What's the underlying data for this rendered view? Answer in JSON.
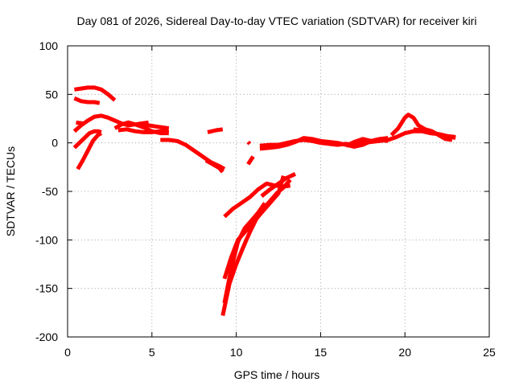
{
  "chart_data": {
    "type": "scatter",
    "title": "Day 081 of 2026, Sidereal Day-to-day VTEC variation (SDTVAR) for receiver kiri",
    "xlabel": "GPS time / hours",
    "ylabel": "SDTVAR / TECUs",
    "xlim": [
      0,
      25
    ],
    "ylim": [
      -200,
      100
    ],
    "xticks": [
      0,
      5,
      10,
      15,
      20,
      25
    ],
    "yticks": [
      100,
      50,
      0,
      -50,
      -100,
      -150,
      -200
    ],
    "grid": true,
    "color": "#ff0000",
    "series": [
      {
        "x": [
          0.4,
          0.8,
          1.2,
          1.6,
          2.0,
          2.4,
          2.8
        ],
        "y": [
          55,
          56,
          57,
          57,
          55,
          50,
          44
        ]
      },
      {
        "x": [
          0.4,
          0.8,
          1.2,
          1.6,
          1.9
        ],
        "y": [
          46,
          43,
          42,
          42,
          41
        ]
      },
      {
        "x": [
          0.4,
          0.8,
          1.2,
          1.6,
          2.0,
          2.4,
          2.8,
          3.2,
          3.6,
          4.0,
          4.4,
          4.8,
          5.2,
          5.6,
          6.0
        ],
        "y": [
          12,
          18,
          23,
          27,
          28,
          26,
          23,
          20,
          18,
          19,
          20,
          18,
          17,
          16,
          15
        ]
      },
      {
        "x": [
          0.4,
          0.7,
          1.0,
          1.3,
          1.6,
          1.8,
          2.0
        ],
        "y": [
          -5,
          0,
          5,
          10,
          12,
          12,
          11
        ]
      },
      {
        "x": [
          0.6,
          0.9,
          1.2,
          1.5,
          1.8,
          2.0
        ],
        "y": [
          -27,
          -18,
          -8,
          2,
          8,
          10
        ]
      },
      {
        "x": [
          0.5,
          0.9
        ],
        "y": [
          21,
          20
        ]
      },
      {
        "x": [
          2.8,
          3.2,
          3.6,
          4.0,
          4.5,
          5.0,
          5.5,
          6.0
        ],
        "y": [
          15,
          19,
          21,
          19,
          16,
          12,
          10,
          10
        ]
      },
      {
        "x": [
          3.0,
          3.5,
          4.0,
          4.5,
          5.0,
          5.5,
          6.0
        ],
        "y": [
          13,
          14,
          12,
          11,
          11,
          12,
          13
        ]
      },
      {
        "x": [
          4.4,
          4.8
        ],
        "y": [
          20,
          21
        ]
      },
      {
        "x": [
          5.5,
          6.0,
          6.5,
          7.0,
          7.5,
          8.0,
          8.5,
          9.0,
          9.3
        ],
        "y": [
          3,
          3,
          2,
          -2,
          -8,
          -14,
          -20,
          -24,
          -27
        ]
      },
      {
        "x": [
          8.2,
          8.6,
          9.0,
          9.2
        ],
        "y": [
          -18,
          -22,
          -26,
          -30
        ]
      },
      {
        "x": [
          8.3,
          8.8,
          9.2
        ],
        "y": [
          11,
          13,
          14
        ]
      },
      {
        "x": [
          9.3,
          9.8,
          10.3,
          10.8,
          11.3,
          11.8,
          12.3,
          12.8,
          13.2
        ],
        "y": [
          -76,
          -68,
          -62,
          -56,
          -48,
          -42,
          -44,
          -45,
          -44
        ]
      },
      {
        "x": [
          9.2,
          9.6,
          10.0,
          10.4,
          10.8,
          11.2,
          11.6,
          12.0,
          12.4,
          12.8,
          13.2
        ],
        "y": [
          -178,
          -145,
          -125,
          -108,
          -92,
          -78,
          -68,
          -60,
          -52,
          -46,
          -38
        ]
      },
      {
        "x": [
          9.3,
          9.7,
          10.1,
          10.5,
          10.9,
          11.3,
          11.7
        ],
        "y": [
          -165,
          -130,
          -102,
          -88,
          -80,
          -72,
          -62
        ]
      },
      {
        "x": [
          9.3,
          9.7,
          10.1,
          10.5,
          11.0,
          11.5,
          12.0,
          12.5,
          12.8
        ],
        "y": [
          -140,
          -118,
          -100,
          -92,
          -82,
          -72,
          -62,
          -52,
          -34
        ]
      },
      {
        "x": [
          11.5,
          12.0,
          12.5,
          13.0,
          13.5
        ],
        "y": [
          -55,
          -48,
          -42,
          -36,
          -32
        ]
      },
      {
        "x": [
          10.7,
          11.0
        ],
        "y": [
          -22,
          -14
        ]
      },
      {
        "x": [
          10.7,
          10.8
        ],
        "y": [
          1,
          -1
        ]
      },
      {
        "x": [
          11.4,
          12.0,
          12.5,
          13.0,
          13.5,
          14.0,
          14.5,
          15.0,
          15.5,
          16.0,
          16.5,
          17.0,
          17.5,
          18.0,
          18.5,
          19.0,
          19.5,
          20.0,
          20.5,
          21.0,
          21.5,
          22.0,
          22.5,
          23.0
        ],
        "y": [
          -3,
          -2,
          -2,
          0,
          2,
          3,
          2,
          0,
          -1,
          -2,
          -1,
          -2,
          0,
          1,
          2,
          3,
          6,
          10,
          12,
          12,
          10,
          9,
          7,
          5
        ]
      },
      {
        "x": [
          11.4,
          12.0,
          12.5,
          13.0,
          13.5,
          14.0,
          14.5,
          15.0,
          15.5,
          16.0,
          16.5,
          17.0,
          17.5,
          18.0,
          18.5,
          19.0
        ],
        "y": [
          -6,
          -5,
          -4,
          -2,
          1,
          5,
          4,
          2,
          1,
          0,
          -2,
          -4,
          -2,
          2,
          4,
          5
        ]
      },
      {
        "x": [
          16.5,
          17.0,
          17.5,
          18.0,
          18.5,
          19.0
        ],
        "y": [
          -3,
          1,
          4,
          2,
          3,
          2
        ]
      },
      {
        "x": [
          19.2,
          19.6,
          20.0,
          20.2,
          20.5,
          20.8,
          21.2,
          21.6,
          22.0,
          22.4,
          22.8
        ],
        "y": [
          8,
          15,
          26,
          29,
          26,
          18,
          14,
          12,
          8,
          4,
          3
        ]
      },
      {
        "x": [
          20.5,
          21.0,
          21.5,
          22.0,
          22.5,
          23.0
        ],
        "y": [
          14,
          13,
          11,
          9,
          7,
          6
        ]
      }
    ]
  }
}
